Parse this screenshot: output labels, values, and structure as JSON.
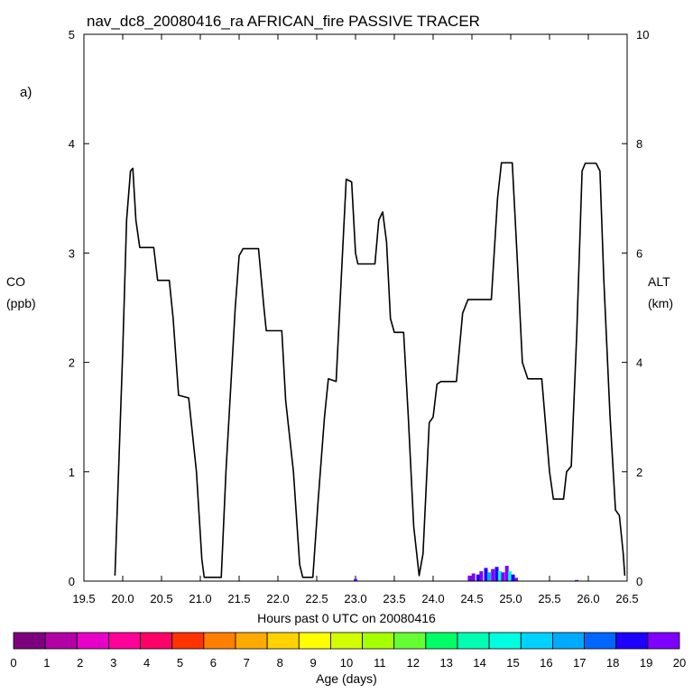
{
  "chart_data": {
    "type": "line",
    "title": "nav_dc8_20080416_ra AFRICAN_fire PASSIVE TRACER",
    "panel_label": "a)",
    "xlabel": "Hours past 0 UTC on 20080416",
    "ylabel_left": [
      "CO",
      "(ppb)"
    ],
    "ylabel_right": [
      "ALT",
      "(km)"
    ],
    "xlim": [
      19.5,
      26.5
    ],
    "ylim_left": [
      0,
      5
    ],
    "ylim_right": [
      0,
      10
    ],
    "x_ticks": [
      "19.5",
      "20.0",
      "20.5",
      "21.0",
      "21.5",
      "22.0",
      "22.5",
      "23.0",
      "23.5",
      "24.0",
      "24.5",
      "25.0",
      "25.5",
      "26.0",
      "26.5"
    ],
    "y_ticks_left": [
      "0",
      "1",
      "2",
      "3",
      "4",
      "5"
    ],
    "y_ticks_right": [
      "0",
      "2",
      "4",
      "6",
      "8",
      "10"
    ],
    "grid": false,
    "series": [
      {
        "axis": "right",
        "units": "km",
        "color": "#000000",
        "points": [
          [
            19.9,
            0.1
          ],
          [
            20.0,
            4.2
          ],
          [
            20.05,
            6.6
          ],
          [
            20.1,
            7.5
          ],
          [
            20.13,
            7.55
          ],
          [
            20.17,
            6.6
          ],
          [
            20.22,
            6.1
          ],
          [
            20.4,
            6.1
          ],
          [
            20.45,
            5.5
          ],
          [
            20.6,
            5.5
          ],
          [
            20.65,
            4.8
          ],
          [
            20.72,
            3.4
          ],
          [
            20.85,
            3.35
          ],
          [
            20.95,
            2.0
          ],
          [
            21.02,
            0.4
          ],
          [
            21.05,
            0.07
          ],
          [
            21.27,
            0.07
          ],
          [
            21.33,
            2.0
          ],
          [
            21.45,
            5.0
          ],
          [
            21.5,
            5.95
          ],
          [
            21.55,
            6.08
          ],
          [
            21.75,
            6.08
          ],
          [
            21.82,
            5.0
          ],
          [
            21.85,
            4.58
          ],
          [
            22.05,
            4.58
          ],
          [
            22.1,
            3.3
          ],
          [
            22.2,
            2.0
          ],
          [
            22.28,
            0.3
          ],
          [
            22.32,
            0.07
          ],
          [
            22.45,
            0.07
          ],
          [
            22.52,
            1.5
          ],
          [
            22.6,
            3.0
          ],
          [
            22.65,
            3.7
          ],
          [
            22.75,
            3.65
          ],
          [
            22.85,
            6.5
          ],
          [
            22.88,
            7.35
          ],
          [
            22.95,
            7.3
          ],
          [
            23.0,
            6.0
          ],
          [
            23.03,
            5.8
          ],
          [
            23.25,
            5.8
          ],
          [
            23.3,
            6.6
          ],
          [
            23.35,
            6.75
          ],
          [
            23.4,
            6.2
          ],
          [
            23.45,
            4.8
          ],
          [
            23.5,
            4.55
          ],
          [
            23.62,
            4.55
          ],
          [
            23.68,
            3.0
          ],
          [
            23.75,
            1.0
          ],
          [
            23.82,
            0.1
          ],
          [
            23.87,
            0.5
          ],
          [
            23.95,
            2.9
          ],
          [
            24.0,
            3.0
          ],
          [
            24.05,
            3.6
          ],
          [
            24.1,
            3.65
          ],
          [
            24.3,
            3.65
          ],
          [
            24.38,
            4.9
          ],
          [
            24.45,
            5.15
          ],
          [
            24.75,
            5.15
          ],
          [
            24.83,
            7.0
          ],
          [
            24.88,
            7.65
          ],
          [
            25.02,
            7.65
          ],
          [
            25.08,
            6.0
          ],
          [
            25.15,
            4.0
          ],
          [
            25.22,
            3.7
          ],
          [
            25.4,
            3.7
          ],
          [
            25.5,
            2.0
          ],
          [
            25.55,
            1.5
          ],
          [
            25.68,
            1.5
          ],
          [
            25.72,
            2.0
          ],
          [
            25.78,
            2.1
          ],
          [
            25.85,
            4.5
          ],
          [
            25.92,
            7.5
          ],
          [
            25.96,
            7.64
          ],
          [
            26.1,
            7.64
          ],
          [
            26.15,
            7.5
          ],
          [
            26.2,
            5.5
          ],
          [
            26.28,
            3.0
          ],
          [
            26.35,
            1.3
          ],
          [
            26.4,
            1.2
          ],
          [
            26.45,
            0.5
          ],
          [
            26.47,
            0.1
          ]
        ]
      }
    ],
    "tracer_bars": {
      "axis": "left",
      "units": "ppb",
      "bars": [
        {
          "x": 23.0,
          "y": 0.02,
          "color": "#7f00ff"
        },
        {
          "x": 24.47,
          "y": 0.05,
          "color": "#7f00ff"
        },
        {
          "x": 24.52,
          "y": 0.07,
          "color": "#7f00ff"
        },
        {
          "x": 24.58,
          "y": 0.06,
          "color": "#1e00ff"
        },
        {
          "x": 24.62,
          "y": 0.09,
          "color": "#7f00ff"
        },
        {
          "x": 24.68,
          "y": 0.12,
          "color": "#1e00ff"
        },
        {
          "x": 24.72,
          "y": 0.08,
          "color": "#00aaff"
        },
        {
          "x": 24.77,
          "y": 0.11,
          "color": "#7f00ff"
        },
        {
          "x": 24.82,
          "y": 0.13,
          "color": "#1e00ff"
        },
        {
          "x": 24.86,
          "y": 0.09,
          "color": "#00ffe1"
        },
        {
          "x": 24.9,
          "y": 0.08,
          "color": "#7f00ff"
        },
        {
          "x": 24.95,
          "y": 0.14,
          "color": "#7f00ff"
        },
        {
          "x": 24.99,
          "y": 0.09,
          "color": "#00ffe1"
        },
        {
          "x": 25.03,
          "y": 0.06,
          "color": "#1e00ff"
        },
        {
          "x": 25.07,
          "y": 0.03,
          "color": "#7f00ff"
        },
        {
          "x": 25.85,
          "y": 0.01,
          "color": "#7f00ff"
        }
      ]
    },
    "colorbar": {
      "label": "Age (days)",
      "tick_labels": [
        "0",
        "1",
        "2",
        "3",
        "4",
        "5",
        "6",
        "7",
        "8",
        "9",
        "10",
        "11",
        "12",
        "13",
        "14",
        "15",
        "16",
        "17",
        "18",
        "19",
        "20"
      ],
      "colors": [
        "#7f007f",
        "#b200a6",
        "#e600c8",
        "#ff0099",
        "#ff0066",
        "#ff3300",
        "#ff7f00",
        "#ffaa00",
        "#ffd200",
        "#ffff00",
        "#d2ff00",
        "#a6ff00",
        "#66ff33",
        "#00ff66",
        "#00ffb2",
        "#00ffe1",
        "#00d2ff",
        "#00aaff",
        "#0066ff",
        "#1e00ff",
        "#7f00ff"
      ]
    }
  }
}
